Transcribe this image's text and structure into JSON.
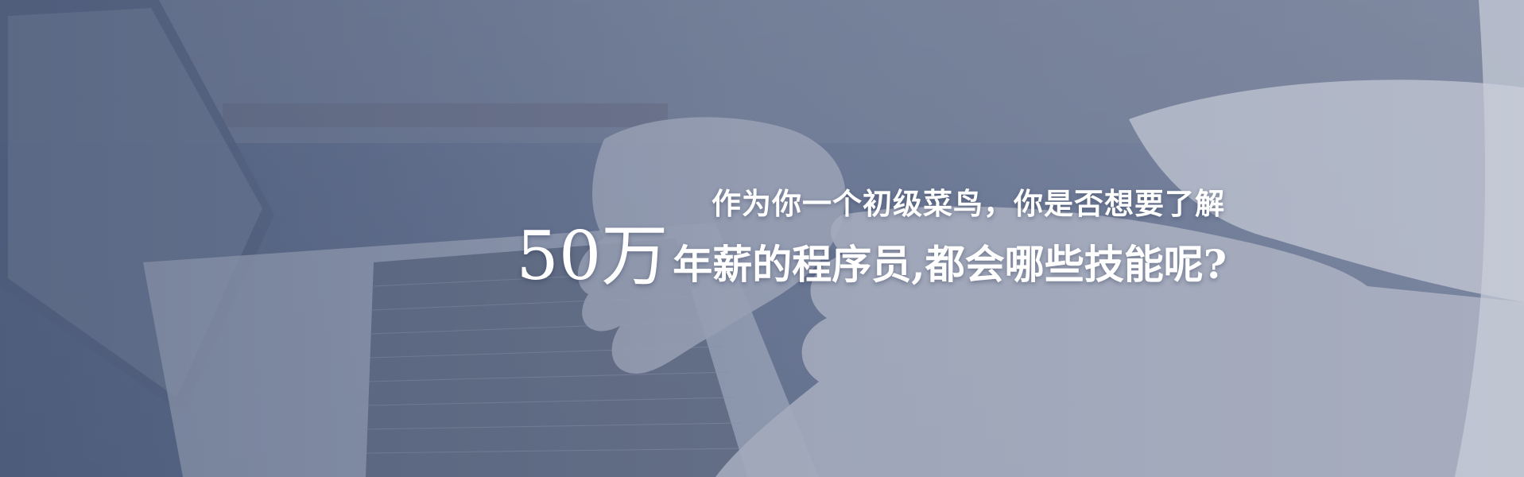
{
  "banner": {
    "line1": "作为你一个初级菜鸟，你是否想要了解",
    "highlight": "50万",
    "line2_rest": "年薪的程序员,都会哪些技能呢?"
  }
}
